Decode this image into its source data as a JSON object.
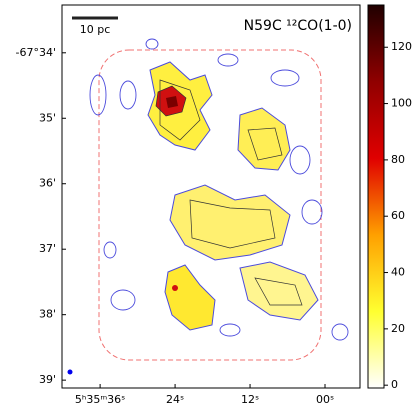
{
  "chart_data": {
    "type": "heatmap",
    "title": "N59C ¹²CO(1-0)",
    "scalebar_label": "10 pc",
    "xlim": [
      42.1,
      -5.6
    ],
    "xticks": [
      {
        "value": 36,
        "label": "5ʰ35ᵐ36ˢ"
      },
      {
        "value": 24,
        "label": "24ˢ"
      },
      {
        "value": 12,
        "label": "12ˢ"
      },
      {
        "value": 0,
        "label": "00ˢ"
      }
    ],
    "ylim": [
      33.27,
      39.12
    ],
    "yticks": [
      {
        "value": 34,
        "label": "-67°34'"
      },
      {
        "value": 35,
        "label": "35'"
      },
      {
        "value": 36,
        "label": "36'"
      },
      {
        "value": 37,
        "label": "37'"
      },
      {
        "value": 38,
        "label": "38'"
      },
      {
        "value": 39,
        "label": "39'"
      }
    ],
    "clim": [
      -1,
      135
    ],
    "cticks": [
      0,
      20,
      40,
      60,
      80,
      100,
      120
    ],
    "colormap": [
      "#ffffff",
      "#ffff30",
      "#ffa000",
      "#e00000",
      "#900000",
      "#200000"
    ]
  }
}
